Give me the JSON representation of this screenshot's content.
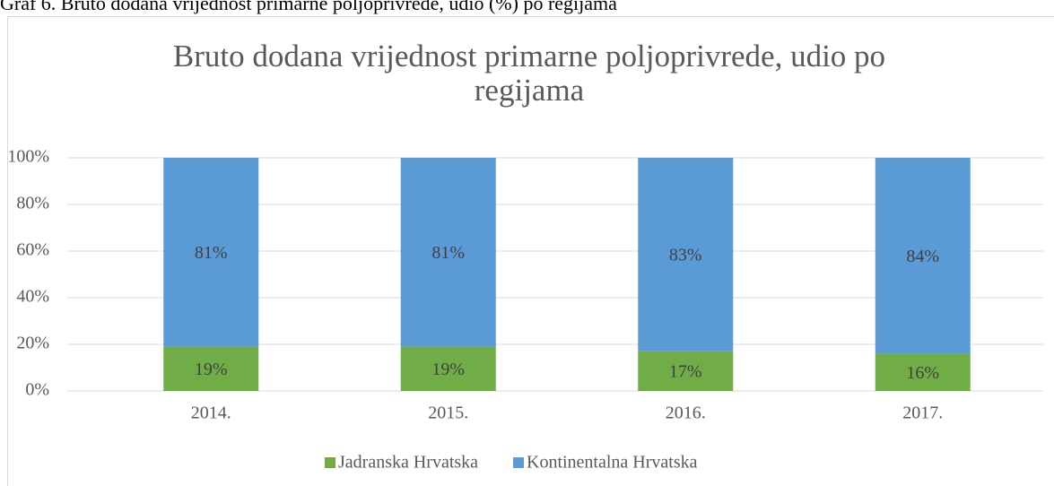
{
  "caption": "Graf 6. Bruto dodana vrijednost primarne poljoprivrede, udio (%) po regijama",
  "chart_data": {
    "type": "stacked_bar",
    "title": "Bruto dodana vrijednost primarne poljoprivrede, udio po regijama",
    "categories": [
      "2014.",
      "2015.",
      "2016.",
      "2017."
    ],
    "series": [
      {
        "name": "Jadranska Hrvatska",
        "color": "#70ad47",
        "values": [
          19,
          19,
          17,
          16
        ],
        "value_labels": [
          "19%",
          "19%",
          "17%",
          "16%"
        ]
      },
      {
        "name": "Kontinentalna Hrvatska",
        "color": "#5b9bd5",
        "values": [
          81,
          81,
          83,
          84
        ],
        "value_labels": [
          "81%",
          "81%",
          "83%",
          "84%"
        ]
      }
    ],
    "ylim": [
      0,
      100
    ],
    "yticks": [
      {
        "value": 0,
        "label": "0%"
      },
      {
        "value": 20,
        "label": "20%"
      },
      {
        "value": 40,
        "label": "40%"
      },
      {
        "value": 60,
        "label": "60%"
      },
      {
        "value": 80,
        "label": "80%"
      },
      {
        "value": 100,
        "label": "100%"
      }
    ],
    "grid": true,
    "legend": "bottom"
  }
}
